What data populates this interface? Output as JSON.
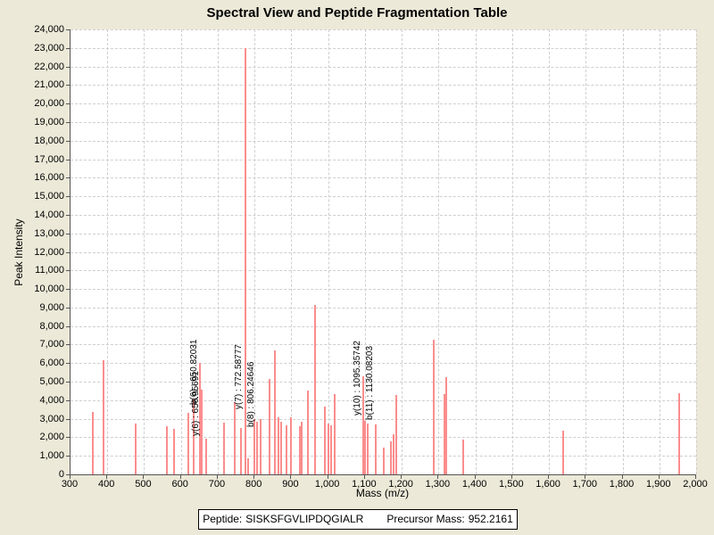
{
  "window": {
    "background_color": "#ece9d8"
  },
  "footer": {
    "peptide_label": "Peptide:",
    "peptide_value": "SISKSFGVLIPDQGIALR",
    "precursor_label": "Precursor Mass:",
    "precursor_value": "952.2161"
  },
  "chart_data": {
    "type": "bar",
    "title": "Spectral View and Peptide Fragmentation Table",
    "xlabel": "Mass (m/z)",
    "ylabel": "Peak Intensity",
    "xlim": [
      300,
      2000
    ],
    "ylim": [
      0,
      24000
    ],
    "grid": true,
    "grid_color": "#cfcfcf",
    "axis_color": "#555555",
    "peak_color": "#fb8d8d",
    "plot_background": "#ffffff",
    "x_ticks": [
      {
        "value": 300,
        "label": "300"
      },
      {
        "value": 400,
        "label": "400"
      },
      {
        "value": 500,
        "label": "500"
      },
      {
        "value": 600,
        "label": "600"
      },
      {
        "value": 700,
        "label": "700"
      },
      {
        "value": 800,
        "label": "800"
      },
      {
        "value": 900,
        "label": "900"
      },
      {
        "value": 1000,
        "label": "1,000"
      },
      {
        "value": 1100,
        "label": "1,100"
      },
      {
        "value": 1200,
        "label": "1,200"
      },
      {
        "value": 1300,
        "label": "1,300"
      },
      {
        "value": 1400,
        "label": "1,400"
      },
      {
        "value": 1500,
        "label": "1,500"
      },
      {
        "value": 1600,
        "label": "1,600"
      },
      {
        "value": 1700,
        "label": "1,700"
      },
      {
        "value": 1800,
        "label": "1,800"
      },
      {
        "value": 1900,
        "label": "1,900"
      },
      {
        "value": 2000,
        "label": "2,000"
      }
    ],
    "y_ticks": [
      {
        "value": 0,
        "label": "0"
      },
      {
        "value": 1000,
        "label": "1,000"
      },
      {
        "value": 2000,
        "label": "2,000"
      },
      {
        "value": 3000,
        "label": "3,000"
      },
      {
        "value": 4000,
        "label": "4,000"
      },
      {
        "value": 5000,
        "label": "5,000"
      },
      {
        "value": 6000,
        "label": "6,000"
      },
      {
        "value": 7000,
        "label": "7,000"
      },
      {
        "value": 8000,
        "label": "8,000"
      },
      {
        "value": 9000,
        "label": "9,000"
      },
      {
        "value": 10000,
        "label": "10,000"
      },
      {
        "value": 11000,
        "label": "11,000"
      },
      {
        "value": 12000,
        "label": "12,000"
      },
      {
        "value": 13000,
        "label": "13,000"
      },
      {
        "value": 14000,
        "label": "14,000"
      },
      {
        "value": 15000,
        "label": "15,000"
      },
      {
        "value": 16000,
        "label": "16,000"
      },
      {
        "value": 17000,
        "label": "17,000"
      },
      {
        "value": 18000,
        "label": "18,000"
      },
      {
        "value": 19000,
        "label": "19,000"
      },
      {
        "value": 20000,
        "label": "20,000"
      },
      {
        "value": 21000,
        "label": "21,000"
      },
      {
        "value": 22000,
        "label": "22,000"
      },
      {
        "value": 23000,
        "label": "23,000"
      },
      {
        "value": 24000,
        "label": "24,000"
      }
    ],
    "peaks_format": "[mz, intensity]",
    "peaks": [
      [
        361,
        3350
      ],
      [
        390,
        6150
      ],
      [
        477,
        2750
      ],
      [
        563,
        2600
      ],
      [
        582,
        2450
      ],
      [
        620,
        3320
      ],
      [
        634,
        4050
      ],
      [
        650.8,
        6000
      ],
      [
        657,
        4550
      ],
      [
        668,
        1900
      ],
      [
        717,
        2800
      ],
      [
        746,
        3900
      ],
      [
        763,
        2500
      ],
      [
        776,
        23000
      ],
      [
        782,
        850
      ],
      [
        800,
        3000
      ],
      [
        806.2,
        2850
      ],
      [
        817,
        2980
      ],
      [
        841,
        5150
      ],
      [
        856,
        6680
      ],
      [
        866,
        3080
      ],
      [
        873,
        2840
      ],
      [
        887,
        2650
      ],
      [
        900,
        3100
      ],
      [
        924,
        2600
      ],
      [
        929,
        2840
      ],
      [
        945,
        4520
      ],
      [
        964,
        9150
      ],
      [
        991,
        3650
      ],
      [
        1002,
        2740
      ],
      [
        1008,
        2650
      ],
      [
        1018,
        4330
      ],
      [
        1095.4,
        5290
      ],
      [
        1101,
        2890
      ],
      [
        1107,
        2740
      ],
      [
        1130.1,
        2700
      ],
      [
        1150,
        1440
      ],
      [
        1171,
        1780
      ],
      [
        1179,
        2160
      ],
      [
        1186,
        4280
      ],
      [
        1288,
        7250
      ],
      [
        1317,
        4350
      ],
      [
        1322,
        5240
      ],
      [
        1368,
        1880
      ],
      [
        1638,
        2360
      ],
      [
        1953,
        4380
      ]
    ],
    "fragment_labels": [
      {
        "text": "b(6) : 650.82031",
        "mz": 650.82,
        "anchor_intensity": 3750
      },
      {
        "text": "y(6) : 656.95691",
        "mz": 656.96,
        "anchor_intensity": 2070
      },
      {
        "text": "y(7) : 772.58777",
        "mz": 772.59,
        "anchor_intensity": 3510
      },
      {
        "text": "b(8) : 806.24646",
        "mz": 806.25,
        "anchor_intensity": 2550
      },
      {
        "text": "y(10) : 1095.35742",
        "mz": 1095.36,
        "anchor_intensity": 3170
      },
      {
        "text": "b(11) : 1130.08203",
        "mz": 1130.08,
        "anchor_intensity": 2930
      }
    ]
  }
}
